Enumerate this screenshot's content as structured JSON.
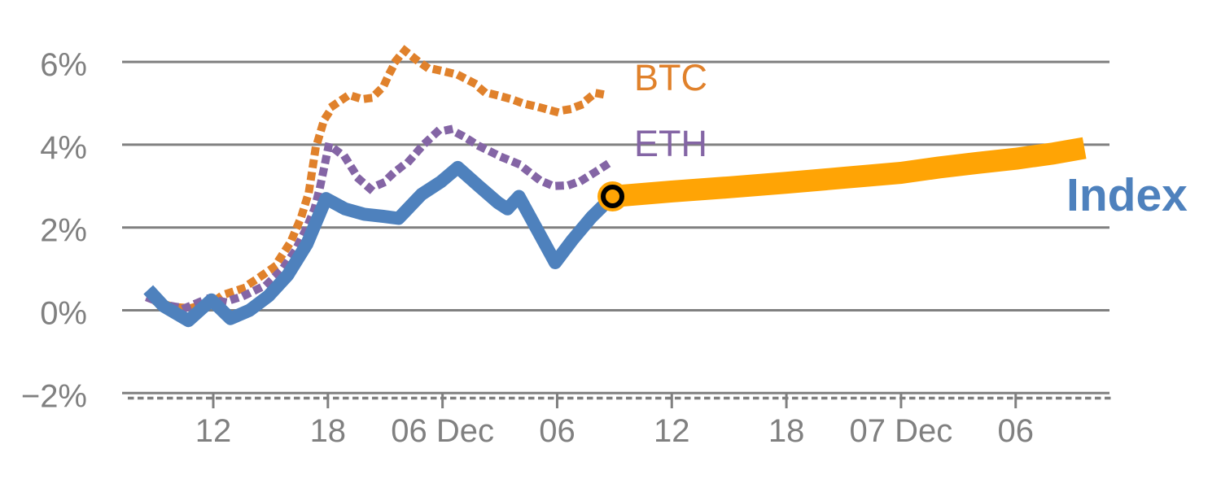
{
  "chart_data": {
    "type": "line",
    "title": "",
    "description": "Percent change of BTC, ETH and Index over time with an Index forecast line",
    "y_axis": {
      "unit": "%",
      "range": [
        -2.6,
        6.6
      ],
      "ticks": [
        {
          "value": 6,
          "label": "6%"
        },
        {
          "value": 4,
          "label": "4%"
        },
        {
          "value": 2,
          "label": "2%"
        },
        {
          "value": 0,
          "label": "0%"
        },
        {
          "value": -2,
          "label": "−2%"
        }
      ]
    },
    "x_axis": {
      "unit": "hours, 6h per labeled tick",
      "range_hours": [
        -4.8,
        46.9
      ],
      "ticks": [
        {
          "t": 0,
          "label": "12"
        },
        {
          "t": 6,
          "label": "18"
        },
        {
          "t": 12,
          "label": "06 Dec"
        },
        {
          "t": 18,
          "label": "06"
        },
        {
          "t": 24,
          "label": "12"
        },
        {
          "t": 30,
          "label": "18"
        },
        {
          "t": 36,
          "label": "07 Dec"
        },
        {
          "t": 42,
          "label": "06"
        }
      ]
    },
    "grid_color": "#808080",
    "axis_text_color": "#808080",
    "series": [
      {
        "name": "BTC",
        "style": "dotted",
        "color": "#E0812B",
        "points": [
          [
            -2.9,
            0.2
          ],
          [
            -2.1,
            0.08
          ],
          [
            -1.2,
            0.05
          ],
          [
            0.0,
            0.2
          ],
          [
            0.5,
            0.37
          ],
          [
            1.5,
            0.52
          ],
          [
            2.3,
            0.76
          ],
          [
            3.2,
            1.05
          ],
          [
            4.05,
            1.65
          ],
          [
            4.6,
            2.25
          ],
          [
            5.0,
            2.85
          ],
          [
            5.35,
            3.9
          ],
          [
            5.8,
            4.6
          ],
          [
            6.3,
            4.95
          ],
          [
            7.1,
            5.2
          ],
          [
            7.8,
            5.1
          ],
          [
            8.3,
            5.13
          ],
          [
            8.9,
            5.4
          ],
          [
            9.2,
            5.7
          ],
          [
            9.6,
            6.05
          ],
          [
            10.0,
            6.28
          ],
          [
            10.6,
            6.06
          ],
          [
            11.2,
            5.86
          ],
          [
            12.0,
            5.78
          ],
          [
            12.8,
            5.69
          ],
          [
            13.6,
            5.5
          ],
          [
            14.2,
            5.27
          ],
          [
            14.8,
            5.2
          ],
          [
            15.6,
            5.1
          ],
          [
            16.2,
            5.0
          ],
          [
            17.1,
            4.9
          ],
          [
            17.9,
            4.8
          ],
          [
            18.6,
            4.85
          ],
          [
            19.2,
            4.95
          ],
          [
            20.0,
            5.25
          ],
          [
            20.6,
            5.2
          ]
        ]
      },
      {
        "name": "ETH",
        "style": "dotted",
        "color": "#8465A5",
        "points": [
          [
            -3.3,
            0.28
          ],
          [
            -2.4,
            0.12
          ],
          [
            -1.5,
            0.05
          ],
          [
            -0.3,
            0.28
          ],
          [
            0.6,
            0.2
          ],
          [
            1.6,
            0.35
          ],
          [
            2.8,
            0.62
          ],
          [
            3.6,
            0.98
          ],
          [
            4.3,
            1.45
          ],
          [
            4.9,
            2.0
          ],
          [
            5.3,
            2.45
          ],
          [
            5.6,
            3.0
          ],
          [
            5.85,
            3.55
          ],
          [
            6.05,
            4.0
          ],
          [
            6.9,
            3.7
          ],
          [
            7.6,
            3.18
          ],
          [
            8.2,
            2.94
          ],
          [
            8.9,
            3.08
          ],
          [
            9.4,
            3.3
          ],
          [
            10.3,
            3.63
          ],
          [
            11.0,
            4.0
          ],
          [
            11.7,
            4.3
          ],
          [
            12.4,
            4.37
          ],
          [
            13.1,
            4.2
          ],
          [
            13.9,
            3.97
          ],
          [
            15.1,
            3.7
          ],
          [
            16.0,
            3.53
          ],
          [
            17.1,
            3.14
          ],
          [
            17.8,
            3.0
          ],
          [
            18.6,
            3.02
          ],
          [
            19.3,
            3.14
          ],
          [
            20.1,
            3.37
          ],
          [
            20.7,
            3.55
          ]
        ]
      },
      {
        "name": "Index",
        "style": "solid",
        "color": "#4E81BD",
        "points": [
          [
            -3.4,
            0.5
          ],
          [
            -2.6,
            0.1
          ],
          [
            -1.3,
            -0.25
          ],
          [
            -0.1,
            0.25
          ],
          [
            0.9,
            -0.2
          ],
          [
            1.9,
            0.0
          ],
          [
            2.9,
            0.35
          ],
          [
            3.9,
            0.85
          ],
          [
            4.9,
            1.6
          ],
          [
            5.9,
            2.7
          ],
          [
            6.9,
            2.45
          ],
          [
            7.9,
            2.32
          ],
          [
            8.9,
            2.27
          ],
          [
            9.7,
            2.22
          ],
          [
            10.9,
            2.8
          ],
          [
            11.9,
            3.1
          ],
          [
            12.8,
            3.45
          ],
          [
            13.9,
            3.0
          ],
          [
            14.9,
            2.6
          ],
          [
            15.4,
            2.45
          ],
          [
            16.0,
            2.75
          ],
          [
            17.9,
            1.15
          ],
          [
            18.8,
            1.7
          ],
          [
            19.8,
            2.25
          ],
          [
            20.9,
            2.75
          ]
        ]
      },
      {
        "name": "Index forecast",
        "style": "solid-thick",
        "color": "#FFA405",
        "points": [
          [
            20.9,
            2.75
          ],
          [
            24,
            2.87
          ],
          [
            27,
            2.97
          ],
          [
            30,
            3.08
          ],
          [
            33,
            3.2
          ],
          [
            36,
            3.32
          ],
          [
            38,
            3.45
          ],
          [
            40,
            3.56
          ],
          [
            42,
            3.66
          ],
          [
            44,
            3.79
          ],
          [
            45.6,
            3.92
          ]
        ]
      }
    ],
    "marker": {
      "t": 20.9,
      "value": 2.75,
      "fill": "#FFA405",
      "ring_color": "#000000"
    },
    "labels": {
      "btc": "BTC",
      "eth": "ETH",
      "index": "Index"
    },
    "legend_position": "inline-right-of-series",
    "grid": "horizontal-only"
  }
}
